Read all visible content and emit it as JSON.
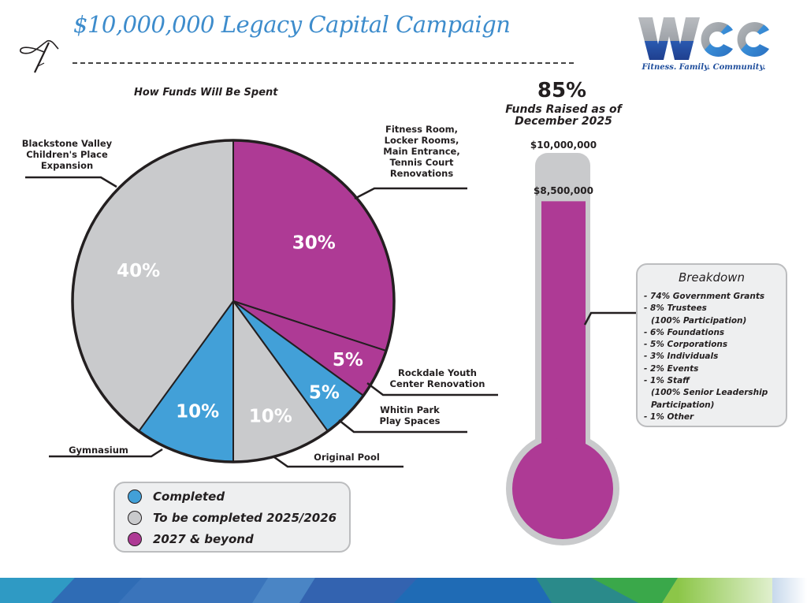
{
  "header": {
    "title": "$10,000,000 Legacy Capital Campaign",
    "pen_icon": "quill-pen-icon"
  },
  "logo": {
    "letters": "WCC",
    "tagline": "Fitness. Family. Community."
  },
  "colors": {
    "completed": "#42a0d8",
    "to_be_completed": "#c9cacc",
    "future": "#ae3a95",
    "title_blue": "#3d8ccc",
    "thermo_shell": "#c9cacc"
  },
  "chart_data": [
    {
      "type": "pie",
      "title": "How Funds Will Be Spent",
      "start": "top",
      "direction": "clockwise",
      "slices": [
        {
          "label": "Fitness Room, Locker Rooms, Main Entrance, Tennis Court Renovations",
          "value": 30,
          "display": "30%",
          "status": "2027 & beyond"
        },
        {
          "label": "Rockdale Youth Center Renovation",
          "value": 5,
          "display": "5%",
          "status": "2027 & beyond"
        },
        {
          "label": "Whitin Park Play Spaces",
          "value": 5,
          "display": "5%",
          "status": "Completed"
        },
        {
          "label": "Original Pool",
          "value": 10,
          "display": "10%",
          "status": "To be completed 2025/2026"
        },
        {
          "label": "Gymnasium",
          "value": 10,
          "display": "10%",
          "status": "Completed"
        },
        {
          "label": "Blackstone Valley Children's Place Expansion",
          "value": 40,
          "display": "40%",
          "status": "To be completed 2025/2026"
        }
      ],
      "label_lines": {
        "fitness": [
          "Fitness Room,",
          "Locker Rooms,",
          "Main Entrance,",
          "Tennis Court",
          "Renovations"
        ],
        "rockdale": [
          "Rockdale Youth",
          "Center Renovation"
        ],
        "whitin": [
          "Whitin Park",
          "Play Spaces"
        ],
        "pool": [
          "Original Pool"
        ],
        "gym": [
          "Gymnasium"
        ],
        "blackstone": [
          "Blackstone Valley",
          "Children's Place",
          "Expansion"
        ]
      },
      "legend": [
        {
          "label": "Completed",
          "status": "completed"
        },
        {
          "label": "To be completed 2025/2026",
          "status": "to_be_completed"
        },
        {
          "label": "2027 & beyond",
          "status": "future"
        }
      ],
      "legend_position": "bottom"
    },
    {
      "type": "bar",
      "subtype": "thermometer",
      "goal": 10000000,
      "raised": 8500000,
      "percent": 85,
      "goal_label": "$10,000,000",
      "raised_label": "$8,500,000",
      "percent_label": "85%",
      "caption_lines": [
        "Funds Raised as of",
        "December 2025"
      ]
    }
  ],
  "breakdown": {
    "title": "Breakdown",
    "items": [
      {
        "text": "- 74% Government Grants"
      },
      {
        "text": "- 8% Trustees",
        "sub": "(100% Participation)"
      },
      {
        "text": "- 6% Foundations"
      },
      {
        "text": "- 5% Corporations"
      },
      {
        "text": "- 3% Individuals"
      },
      {
        "text": "- 2% Events"
      },
      {
        "text": "- 1% Staff",
        "sub": "(100% Senior Leadership Participation)",
        "sub_lines": [
          "(100% Senior Leadership",
          "Participation)"
        ]
      },
      {
        "text": "- 1% Other"
      }
    ]
  }
}
